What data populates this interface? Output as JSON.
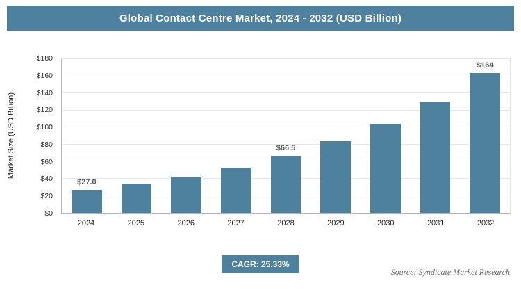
{
  "colors": {
    "accent": "#4d819e",
    "bar": "#4d819e",
    "gridline": "#e8e8e8",
    "bar_label": "#575757"
  },
  "chart_data": {
    "type": "bar",
    "title": "Global Contact Centre Market, 2024 - 2032 (USD Billion)",
    "categories": [
      "2024",
      "2025",
      "2026",
      "2027",
      "2028",
      "2029",
      "2030",
      "2031",
      "2032"
    ],
    "values": [
      27.0,
      34,
      42.5,
      53,
      66.5,
      83.5,
      104.5,
      130.5,
      164
    ],
    "bar_labels": [
      "$27.0",
      "",
      "",
      "",
      "$66.5",
      "",
      "",
      "",
      "$164"
    ],
    "xlabel": "",
    "ylabel": "Market Size (USD Billion)",
    "ylim": [
      0,
      180
    ],
    "ytick_step": 20,
    "ytick_labels": [
      "$0",
      "$20",
      "$40",
      "$60",
      "$80",
      "$100",
      "$120",
      "$140",
      "$160",
      "$180"
    ],
    "grid": true,
    "legend": "none"
  },
  "footer": {
    "cagr": "CAGR: 25.33%",
    "source": "Source: Syndicate Market Research"
  }
}
